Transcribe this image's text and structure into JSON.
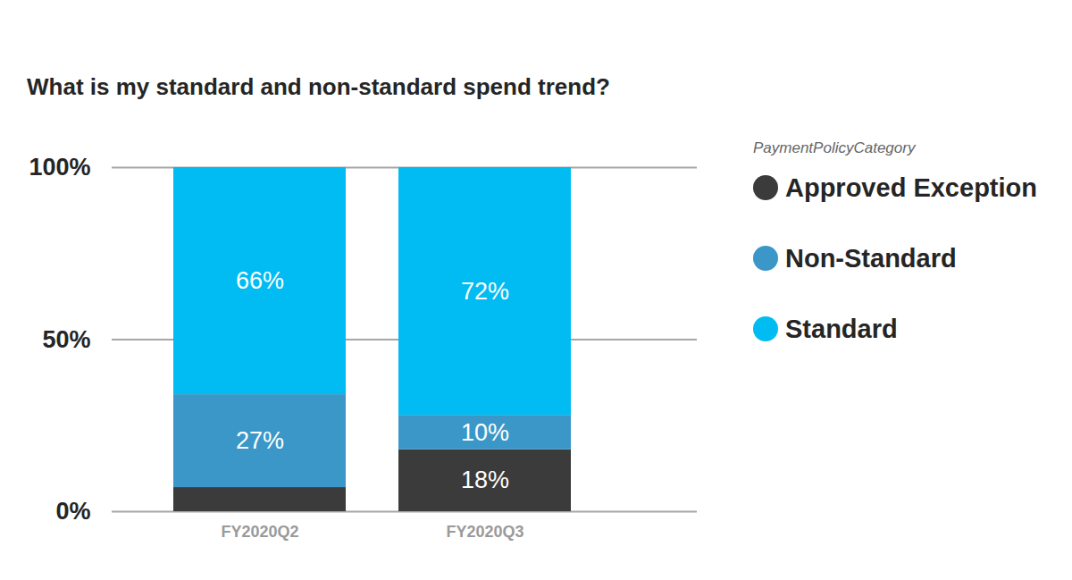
{
  "chart_data": {
    "type": "bar",
    "title": "What is my standard and non-standard spend trend?",
    "categories": [
      "FY2020Q2",
      "FY2020Q3"
    ],
    "series": [
      {
        "name": "Approved Exception",
        "color": "#3b3b3b",
        "values": [
          7,
          18
        ],
        "value_labels": [
          null,
          "18%"
        ]
      },
      {
        "name": "Non-Standard",
        "color": "#3a97c8",
        "values": [
          27,
          10
        ],
        "value_labels": [
          "27%",
          "10%"
        ]
      },
      {
        "name": "Standard",
        "color": "#00bcf2",
        "values": [
          66,
          72
        ],
        "value_labels": [
          "66%",
          "72%"
        ]
      }
    ],
    "stacked": true,
    "data_labels": true,
    "ylim": [
      0,
      100
    ],
    "yticks": [
      {
        "value": 0,
        "label": "0%"
      },
      {
        "value": 50,
        "label": "50%"
      },
      {
        "value": 100,
        "label": "100%"
      }
    ],
    "grid": true,
    "legend": "right",
    "legend_title": "PaymentPolicyCategory"
  }
}
